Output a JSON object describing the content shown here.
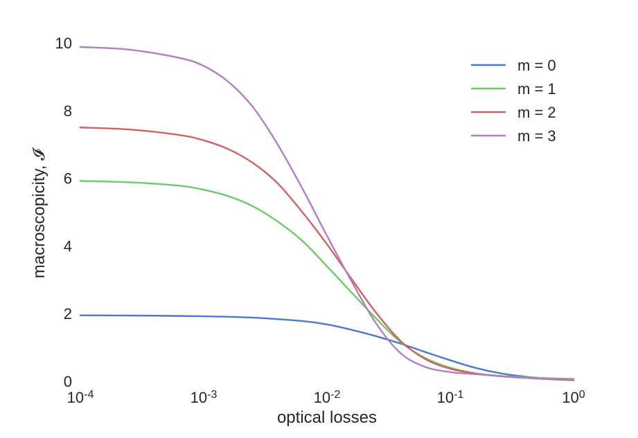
{
  "chart_data": {
    "type": "line",
    "title": "",
    "xlabel": "optical losses",
    "ylabel": "macroscopicity, 𝓘",
    "xscale": "log",
    "xlim": [
      0.0001,
      1
    ],
    "ylim": [
      0,
      10
    ],
    "grid": false,
    "legend_position": "top-right",
    "x_ticks": [
      {
        "base": "10",
        "exp": "-4"
      },
      {
        "base": "10",
        "exp": "-3"
      },
      {
        "base": "10",
        "exp": "-2"
      },
      {
        "base": "10",
        "exp": "-1"
      },
      {
        "base": "10",
        "exp": "0"
      }
    ],
    "y_ticks": [
      "0",
      "2",
      "4",
      "6",
      "8",
      "10"
    ],
    "series": [
      {
        "name": "m = 0",
        "color": "#4878cf",
        "points": [
          [
            -4.0,
            1.95
          ],
          [
            -3.5,
            1.94
          ],
          [
            -3.0,
            1.92
          ],
          [
            -2.6,
            1.88
          ],
          [
            -2.2,
            1.78
          ],
          [
            -2.0,
            1.68
          ],
          [
            -1.8,
            1.52
          ],
          [
            -1.6,
            1.33
          ],
          [
            -1.4,
            1.11
          ],
          [
            -1.2,
            0.86
          ],
          [
            -1.0,
            0.62
          ],
          [
            -0.8,
            0.4
          ],
          [
            -0.6,
            0.24
          ],
          [
            -0.4,
            0.14
          ],
          [
            -0.2,
            0.08
          ],
          [
            0.0,
            0.06
          ]
        ]
      },
      {
        "name": "m = 1",
        "color": "#6acc65",
        "points": [
          [
            -4.0,
            5.92
          ],
          [
            -3.6,
            5.88
          ],
          [
            -3.2,
            5.78
          ],
          [
            -3.0,
            5.66
          ],
          [
            -2.8,
            5.47
          ],
          [
            -2.6,
            5.17
          ],
          [
            -2.4,
            4.72
          ],
          [
            -2.2,
            4.15
          ],
          [
            -2.0,
            3.4
          ],
          [
            -1.8,
            2.62
          ],
          [
            -1.6,
            1.85
          ],
          [
            -1.4,
            1.15
          ],
          [
            -1.2,
            0.68
          ],
          [
            -1.0,
            0.4
          ],
          [
            -0.8,
            0.24
          ],
          [
            -0.6,
            0.16
          ],
          [
            -0.4,
            0.12
          ],
          [
            -0.2,
            0.09
          ],
          [
            0.0,
            0.07
          ]
        ]
      },
      {
        "name": "m = 2",
        "color": "#d65f5f",
        "points": [
          [
            -4.0,
            7.5
          ],
          [
            -3.6,
            7.44
          ],
          [
            -3.2,
            7.28
          ],
          [
            -3.0,
            7.12
          ],
          [
            -2.8,
            6.86
          ],
          [
            -2.6,
            6.45
          ],
          [
            -2.4,
            5.85
          ],
          [
            -2.2,
            5.0
          ],
          [
            -2.0,
            4.05
          ],
          [
            -1.8,
            3.02
          ],
          [
            -1.6,
            2.02
          ],
          [
            -1.4,
            1.18
          ],
          [
            -1.2,
            0.65
          ],
          [
            -1.0,
            0.37
          ],
          [
            -0.8,
            0.23
          ],
          [
            -0.6,
            0.15
          ],
          [
            -0.4,
            0.1
          ],
          [
            -0.2,
            0.06
          ],
          [
            0.0,
            0.03
          ]
        ]
      },
      {
        "name": "m = 3",
        "color": "#b47cc7",
        "points": [
          [
            -4.0,
            9.88
          ],
          [
            -3.6,
            9.8
          ],
          [
            -3.2,
            9.56
          ],
          [
            -3.0,
            9.32
          ],
          [
            -2.8,
            8.85
          ],
          [
            -2.6,
            8.1
          ],
          [
            -2.4,
            7.0
          ],
          [
            -2.2,
            5.7
          ],
          [
            -2.0,
            4.3
          ],
          [
            -1.8,
            2.95
          ],
          [
            -1.6,
            1.7
          ],
          [
            -1.4,
            0.82
          ],
          [
            -1.2,
            0.42
          ],
          [
            -1.0,
            0.27
          ],
          [
            -0.8,
            0.21
          ],
          [
            -0.6,
            0.15
          ],
          [
            -0.4,
            0.1
          ],
          [
            -0.2,
            0.07
          ],
          [
            0.0,
            0.05
          ]
        ]
      }
    ]
  }
}
